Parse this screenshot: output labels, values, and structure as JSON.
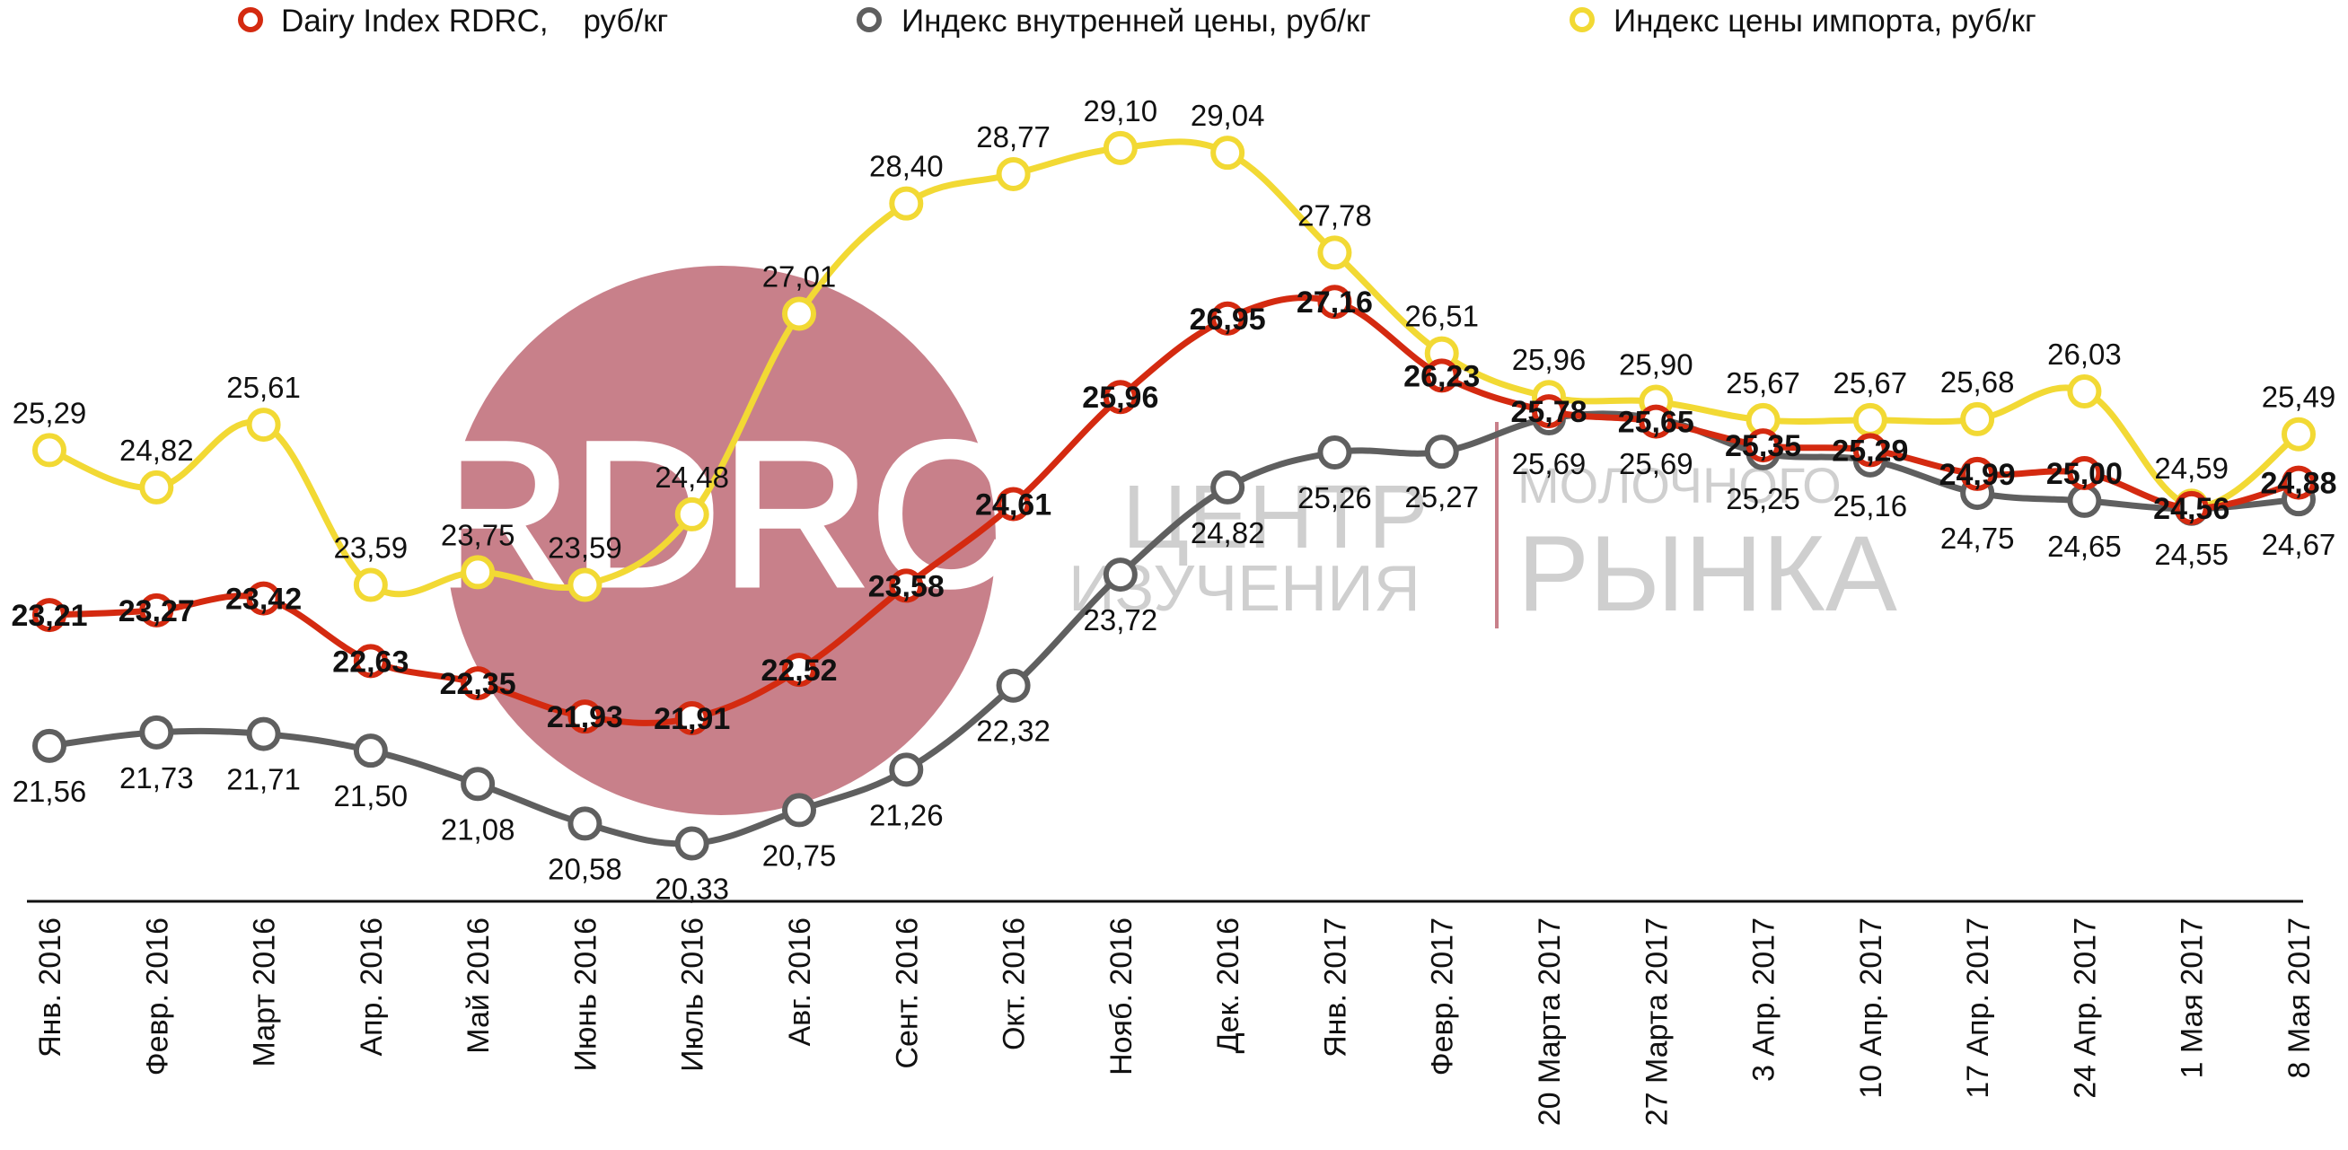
{
  "watermark": {
    "logo_text": "RDRC",
    "line1a": "ЦЕНТР",
    "line1b": "МОЛОЧНОГО",
    "line2a": "ИЗУЧЕНИЯ",
    "line2b": "РЫНКА",
    "circle_color": "#c8808a"
  },
  "chart_data": {
    "type": "line",
    "categories": [
      "Янв. 2016",
      "Февр. 2016",
      "Март 2016",
      "Апр. 2016",
      "Май 2016",
      "Июнь 2016",
      "Июль 2016",
      "Авг. 2016",
      "Сент. 2016",
      "Окт. 2016",
      "Нояб. 2016",
      "Дек. 2016",
      "Янв. 2017",
      "Февр. 2017",
      "20 Марта 2017",
      "27 Марта 2017",
      "3 Апр. 2017",
      "10 Апр. 2017",
      "17 Апр. 2017",
      "24 Апр. 2017",
      "1 Мая 2017",
      "8 Мая 2017"
    ],
    "series": [
      {
        "name": "Dairy Index RDRC,    руб/кг",
        "color": "#d42a10",
        "values": [
          23.21,
          23.27,
          23.42,
          22.63,
          22.35,
          21.93,
          21.91,
          22.52,
          23.58,
          24.61,
          25.96,
          26.95,
          27.16,
          26.23,
          25.78,
          25.65,
          25.35,
          25.29,
          24.99,
          25.0,
          24.56,
          24.88
        ],
        "labels": [
          "23,21",
          "23,27",
          "23,42",
          "22,63",
          "22,35",
          "21,93",
          "21,91",
          "22,52",
          "23,58",
          "24,61",
          "25,96",
          "26,95",
          "27,16",
          "26,23",
          "25,78",
          "25,65",
          "25,35",
          "25,29",
          "24,99",
          "25,00",
          "24,56",
          "24,88"
        ]
      },
      {
        "name": "Индекс внутренней цены, руб/кг",
        "color": "#5f5f5f",
        "values": [
          21.56,
          21.73,
          21.71,
          21.5,
          21.08,
          20.58,
          20.33,
          20.75,
          21.26,
          22.32,
          23.72,
          24.82,
          25.26,
          25.27,
          25.69,
          25.69,
          25.25,
          25.16,
          24.75,
          24.65,
          24.55,
          24.67
        ],
        "labels": [
          "21,56",
          "21,73",
          "21,71",
          "21,50",
          "21,08",
          "20,58",
          "20,33",
          "20,75",
          "21,26",
          "22,32",
          "23,72",
          "24,82",
          "25,26",
          "25,27",
          "25,69",
          "25,69",
          "25,25",
          "25,16",
          "24,75",
          "24,65",
          "24,55",
          "24,67"
        ]
      },
      {
        "name": "Индекс цены импорта, руб/кг",
        "color": "#f2d934",
        "values": [
          25.29,
          24.82,
          25.61,
          23.59,
          23.75,
          23.59,
          24.48,
          27.01,
          28.4,
          28.77,
          29.1,
          29.04,
          27.78,
          26.51,
          25.96,
          25.9,
          25.67,
          25.67,
          25.68,
          26.03,
          24.59,
          25.49
        ],
        "labels": [
          "25,29",
          "24,82",
          "25,61",
          "23,59",
          "23,75",
          "23,59",
          "24,48",
          "27,01",
          "28,40",
          "28,77",
          "29,10",
          "29,04",
          "27,78",
          "26,51",
          "25,96",
          "25,90",
          "25,67",
          "25,67",
          "25,68",
          "26,03",
          "24,59",
          "25,49"
        ]
      }
    ],
    "ylim": [
      19.6,
      30.4
    ],
    "grid": false,
    "legend_position": "top"
  }
}
